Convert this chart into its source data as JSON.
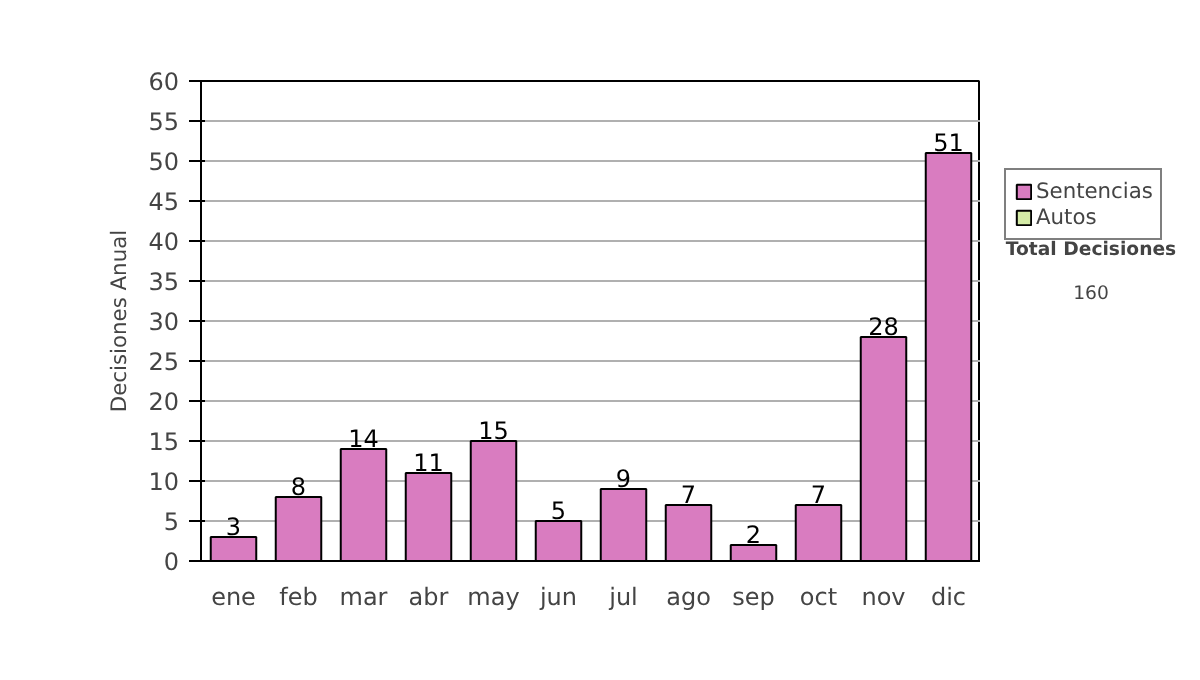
{
  "chart_data": {
    "type": "bar",
    "ylabel": "Decisiones Anual",
    "categories": [
      "ene",
      "feb",
      "mar",
      "abr",
      "may",
      "jun",
      "jul",
      "ago",
      "sep",
      "oct",
      "nov",
      "dic"
    ],
    "series": [
      {
        "name": "Sentencias",
        "color": "#d97cc0",
        "values": [
          3,
          8,
          14,
          11,
          15,
          5,
          9,
          7,
          2,
          7,
          28,
          51
        ]
      },
      {
        "name": "Autos",
        "color": "#d4eba6",
        "values": [
          null,
          null,
          null,
          null,
          null,
          null,
          null,
          null,
          null,
          null,
          null,
          null
        ]
      }
    ],
    "ylim": [
      0,
      60
    ],
    "yticks": [
      0,
      5,
      10,
      15,
      20,
      25,
      30,
      35,
      40,
      45,
      50,
      55,
      60
    ],
    "grid": "y",
    "legend": "right",
    "data_labels": true,
    "annotations": [
      "Total Decisiones",
      "160"
    ]
  }
}
